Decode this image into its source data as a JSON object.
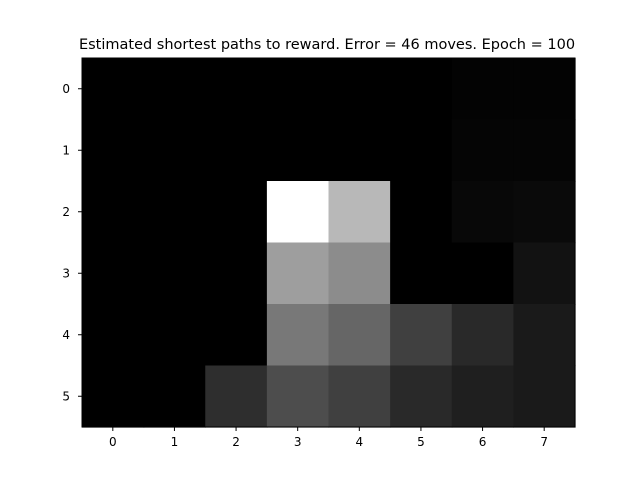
{
  "chart_data": {
    "type": "heatmap",
    "title": "Estimated shortest paths to reward. Error = 46 moves. Epoch = 100",
    "colormap": "gray",
    "x_tick_labels": [
      "0",
      "1",
      "2",
      "3",
      "4",
      "5",
      "6",
      "7"
    ],
    "y_tick_labels": [
      "0",
      "1",
      "2",
      "3",
      "4",
      "5"
    ],
    "xlabel": "",
    "ylabel": "",
    "grid": false,
    "rows": [
      [
        0.0,
        0.0,
        0.0,
        0.0,
        0.0,
        0.0,
        0.01,
        0.01
      ],
      [
        0.0,
        0.0,
        0.0,
        0.0,
        0.0,
        0.0,
        0.02,
        0.02
      ],
      [
        0.0,
        0.0,
        0.0,
        1.0,
        0.72,
        0.0,
        0.03,
        0.04
      ],
      [
        0.0,
        0.0,
        0.0,
        0.62,
        0.55,
        0.0,
        0.0,
        0.07
      ],
      [
        0.0,
        0.0,
        0.0,
        0.47,
        0.4,
        0.25,
        0.16,
        0.1
      ],
      [
        0.0,
        0.0,
        0.18,
        0.3,
        0.25,
        0.16,
        0.12,
        0.1
      ]
    ]
  }
}
